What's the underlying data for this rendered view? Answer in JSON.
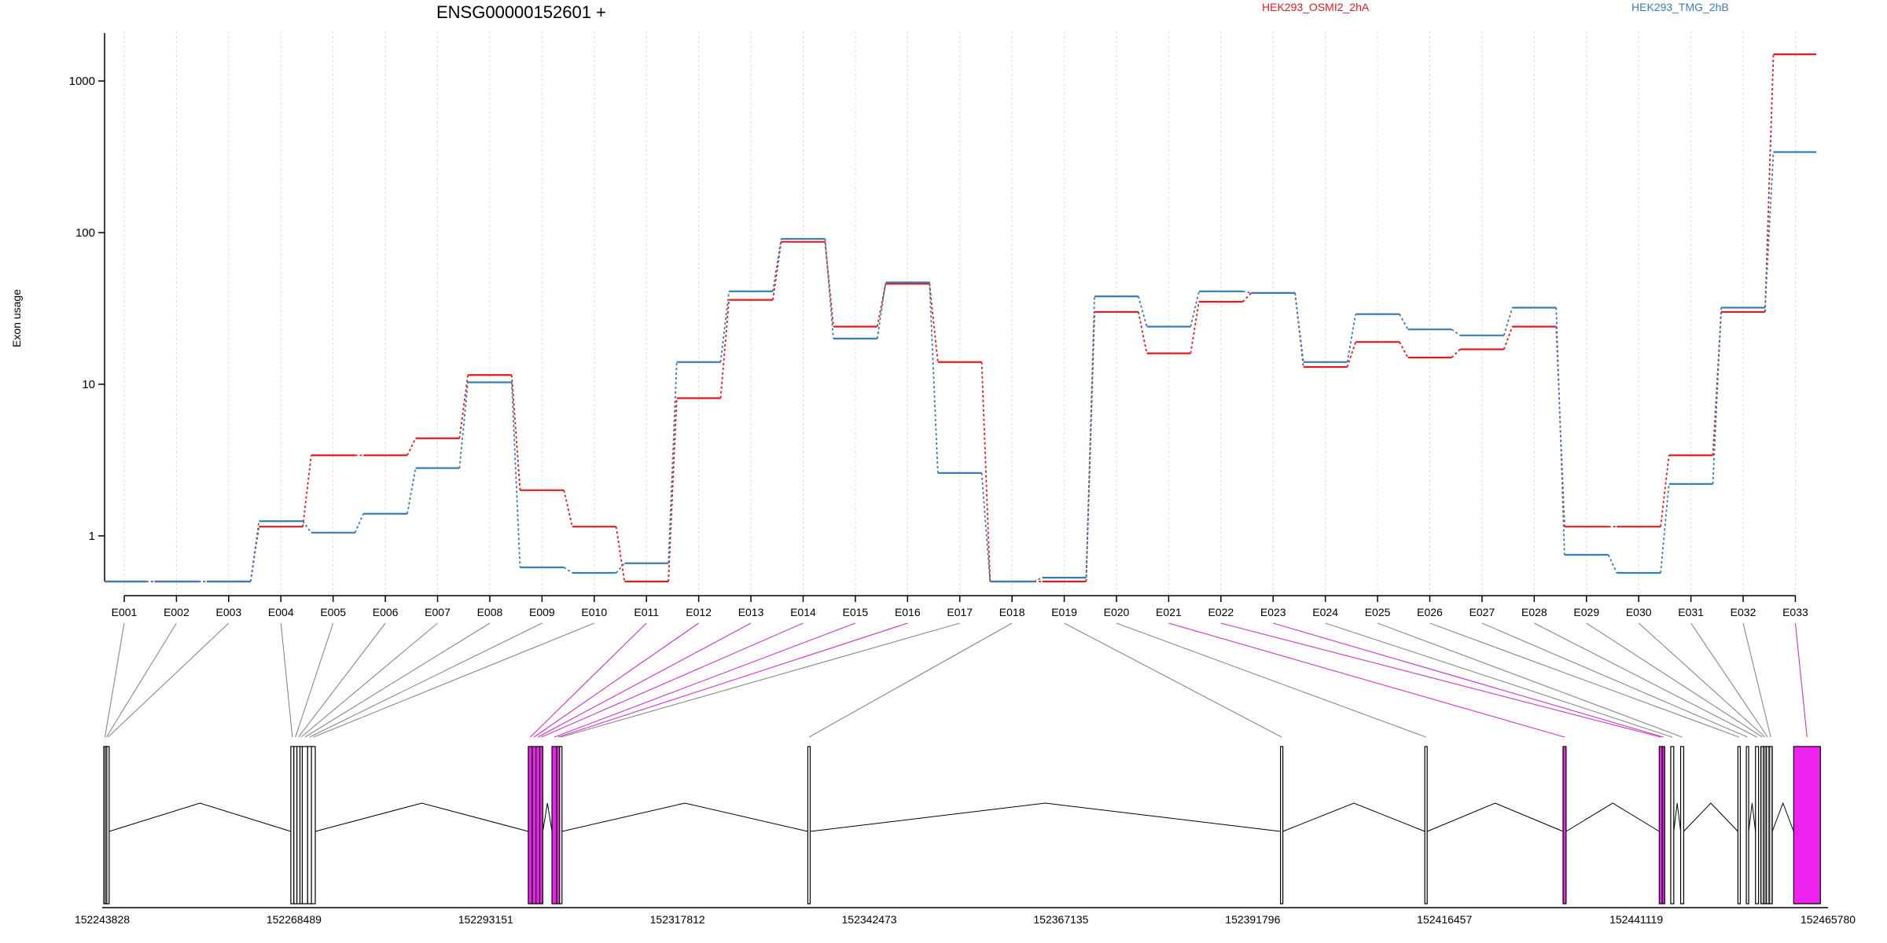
{
  "chart_data": {
    "type": "line",
    "title": "ENSG00000152601 +",
    "ylabel": "Exon usage",
    "xlabel": "",
    "y_scale": "log",
    "ylim": [
      0.5,
      2000
    ],
    "y_ticks": [
      1,
      10,
      100,
      1000
    ],
    "y_tick_labels": [
      "1",
      "10",
      "100",
      "1000"
    ],
    "grid": "vertical dotted lines at exon positions",
    "legend_position": "top",
    "categories": [
      "E001",
      "E002",
      "E003",
      "E004",
      "E005",
      "E006",
      "E007",
      "E008",
      "E009",
      "E010",
      "E011",
      "E012",
      "E013",
      "E014",
      "E015",
      "E016",
      "E017",
      "E018",
      "E019",
      "E020",
      "E021",
      "E022",
      "E023",
      "E024",
      "E025",
      "E026",
      "E027",
      "E028",
      "E029",
      "E030",
      "E031",
      "E032",
      "E033"
    ],
    "series": [
      {
        "name": "HEK293_OSMI2_2hA",
        "color": "#e41a1c",
        "values": [
          0.5,
          0.5,
          0.5,
          1.15,
          3.4,
          3.4,
          4.4,
          11.5,
          2.0,
          1.15,
          0.5,
          8.1,
          36,
          87,
          24,
          46,
          14,
          0.5,
          0.5,
          30,
          16,
          35,
          40,
          13,
          19,
          15,
          17,
          24,
          1.15,
          1.15,
          3.4,
          30,
          1500
        ]
      },
      {
        "name": "HEK293_TMG_2hB",
        "color": "#377eb8",
        "values": [
          0.5,
          0.5,
          0.5,
          1.25,
          1.05,
          1.4,
          2.8,
          10.3,
          0.62,
          0.57,
          0.66,
          14,
          41,
          91,
          20,
          47,
          2.6,
          0.5,
          0.53,
          38,
          24,
          41,
          40,
          14,
          29,
          23,
          21,
          32,
          0.75,
          0.57,
          2.2,
          32,
          340
        ]
      }
    ],
    "gene_model": {
      "coordinate_labels": [
        "152243828",
        "152268489",
        "152293151",
        "152317812",
        "152342473",
        "152367135",
        "152391796",
        "152416457",
        "152441119",
        "152465780"
      ],
      "exon_mapping_color": "#cc33cc",
      "intron_color": "#000000",
      "highlight_color": "#ee22ee",
      "neutral_exon_color": "#c8c8c8",
      "exons": [
        {
          "id": "E001",
          "start": 0.2,
          "end": 0.4,
          "type": "normal"
        },
        {
          "id": "E002",
          "start": 0.4,
          "end": 0.6,
          "type": "normal"
        },
        {
          "id": "E003",
          "start": 0.6,
          "end": 0.9,
          "type": "normal"
        },
        {
          "id": "E004",
          "start": 24.7,
          "end": 25.1,
          "type": "normal"
        },
        {
          "id": "E005",
          "start": 25.1,
          "end": 25.5,
          "type": "normal"
        },
        {
          "id": "E006",
          "start": 25.5,
          "end": 25.9,
          "type": "normal"
        },
        {
          "id": "E007",
          "start": 25.9,
          "end": 26.2,
          "type": "normal"
        },
        {
          "id": "E008",
          "start": 26.2,
          "end": 26.9,
          "type": "normal"
        },
        {
          "id": "E009",
          "start": 26.9,
          "end": 27.4,
          "type": "normal"
        },
        {
          "id": "E010",
          "start": 27.4,
          "end": 27.9,
          "type": "normal"
        },
        {
          "id": "E011",
          "start": 55.8,
          "end": 56.3,
          "type": "highlight"
        },
        {
          "id": "E012",
          "start": 56.3,
          "end": 56.8,
          "type": "highlight"
        },
        {
          "id": "E013",
          "start": 56.8,
          "end": 57.3,
          "type": "highlight"
        },
        {
          "id": "E014",
          "start": 57.3,
          "end": 57.7,
          "type": "highlight"
        },
        {
          "id": "E015",
          "start": 58.9,
          "end": 59.5,
          "type": "highlight"
        },
        {
          "id": "E016",
          "start": 59.5,
          "end": 59.9,
          "type": "highlight"
        },
        {
          "id": "E017",
          "start": 59.9,
          "end": 60.2,
          "type": "normal"
        },
        {
          "id": "E018",
          "start": 92.4,
          "end": 92.6,
          "type": "normal"
        },
        {
          "id": "E019",
          "start": 154.3,
          "end": 154.5,
          "type": "normal"
        },
        {
          "id": "E020",
          "start": 173.2,
          "end": 173.5,
          "type": "normal"
        },
        {
          "id": "E021",
          "start": 191.3,
          "end": 191.7,
          "type": "highlight"
        },
        {
          "id": "E022",
          "start": 203.9,
          "end": 204.3,
          "type": "highlight"
        },
        {
          "id": "E023",
          "start": 204.3,
          "end": 204.6,
          "type": "highlight"
        },
        {
          "id": "E024",
          "start": 205.4,
          "end": 205.8,
          "type": "normal"
        },
        {
          "id": "E025",
          "start": 206.7,
          "end": 207.1,
          "type": "normal"
        },
        {
          "id": "E026",
          "start": 214.2,
          "end": 214.5,
          "type": "normal"
        },
        {
          "id": "E027",
          "start": 215.3,
          "end": 215.6,
          "type": "normal"
        },
        {
          "id": "E028",
          "start": 216.5,
          "end": 216.9,
          "type": "normal"
        },
        {
          "id": "E029",
          "start": 217.2,
          "end": 217.6,
          "type": "neutral"
        },
        {
          "id": "E030",
          "start": 217.6,
          "end": 217.9,
          "type": "neutral"
        },
        {
          "id": "E031",
          "start": 217.9,
          "end": 218.3,
          "type": "neutral"
        },
        {
          "id": "E032",
          "start": 218.3,
          "end": 218.7,
          "type": "neutral"
        },
        {
          "id": "E033",
          "start": 221.5,
          "end": 225.0,
          "type": "highlight"
        }
      ]
    }
  }
}
